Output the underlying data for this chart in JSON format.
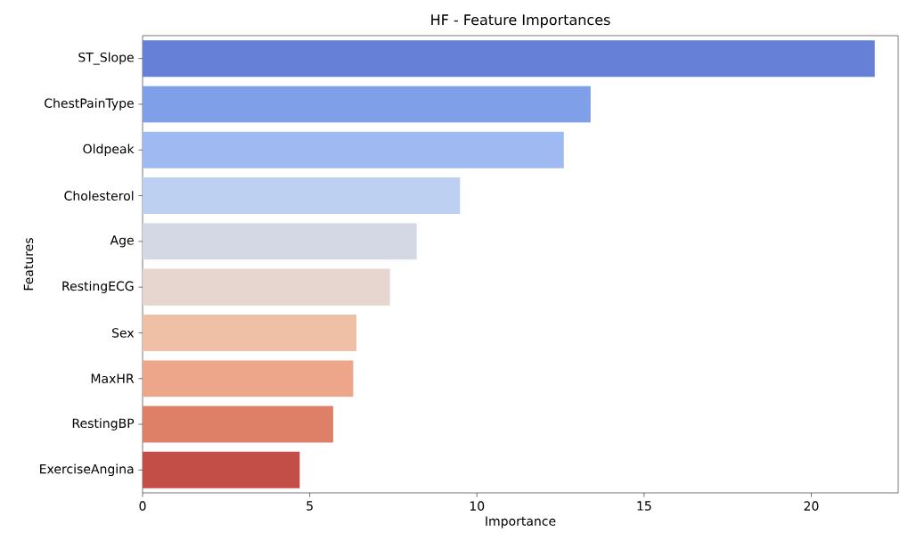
{
  "chart_data": {
    "type": "bar",
    "orientation": "horizontal",
    "title": "HF - Feature Importances",
    "xlabel": "Importance",
    "ylabel": "Features",
    "categories": [
      "ST_Slope",
      "ChestPainType",
      "Oldpeak",
      "Cholesterol",
      "Age",
      "RestingECG",
      "Sex",
      "MaxHR",
      "RestingBP",
      "ExerciseAngina"
    ],
    "values": [
      21.9,
      13.4,
      12.6,
      9.5,
      8.2,
      7.4,
      6.4,
      6.3,
      5.7,
      4.7
    ],
    "colors": [
      "#6580d6",
      "#7f9fe8",
      "#9fbaf3",
      "#bdd0f2",
      "#d3d8e4",
      "#e6d6cf",
      "#f0c0a6",
      "#eda68a",
      "#de7f68",
      "#c24e47"
    ],
    "xlim": [
      0,
      22.6
    ],
    "xticks": [
      0,
      5,
      10,
      15,
      20
    ]
  }
}
